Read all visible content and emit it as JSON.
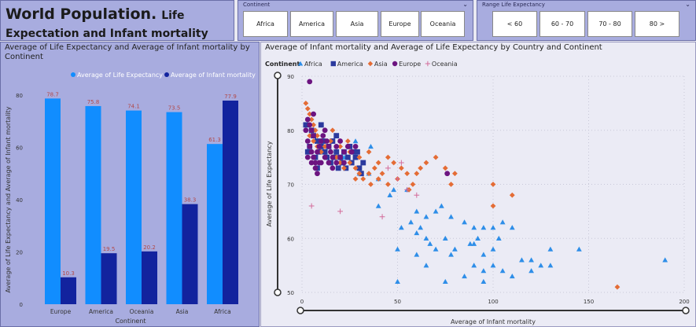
{
  "header": {
    "title_main": "World Population.",
    "title_sub": "Life Expectation and Infant mortality"
  },
  "continent_slicer": {
    "label": "Continent",
    "options": [
      "Africa",
      "America",
      "Asia",
      "Europe",
      "Oceania"
    ]
  },
  "range_slicer": {
    "label": "Range Life Expectancy",
    "options": [
      "< 60",
      "60 - 70",
      "70 - 80",
      "80 >"
    ]
  },
  "colors": {
    "life": "#118dff",
    "infant": "#12239e",
    "africa": "#2e8ee8",
    "america": "#2b3a9e",
    "asia": "#e46c35",
    "europe": "#6c1480",
    "oceania": "#d36b9a"
  },
  "chart_data": [
    {
      "type": "bar",
      "title": "Average of Life Expectancy and Average of Infant mortality by Continent",
      "xlabel": "Continent",
      "ylabel": "Average of Life Expectancy and Average of Infant mortality",
      "legend_position": "top",
      "categories": [
        "Europe",
        "America",
        "Oceania",
        "Asia",
        "Africa"
      ],
      "ylim": [
        0,
        85
      ],
      "yticks": [
        0,
        20,
        40,
        60,
        80
      ],
      "series": [
        {
          "name": "Average of Life Expectancy",
          "values": [
            78.7,
            75.8,
            74.1,
            73.5,
            61.3
          ]
        },
        {
          "name": "Average of Infant mortality",
          "values": [
            10.3,
            19.5,
            20.2,
            38.3,
            77.9
          ]
        }
      ]
    },
    {
      "type": "scatter",
      "title": "Average of Infant mortality and Average of Life Expectancy by Country and Continent",
      "xlabel": "Average of Infant mortality",
      "ylabel": "Average of Life Expectancy",
      "legend_title": "Continent",
      "legend_position": "top-left",
      "xlim": [
        0,
        200
      ],
      "ylim": [
        50,
        90
      ],
      "xticks": [
        0,
        50,
        100,
        150,
        200
      ],
      "yticks": [
        50,
        60,
        70,
        80,
        90
      ],
      "series": [
        {
          "name": "Africa",
          "marker": "triangle",
          "points": [
            [
              30,
              72
            ],
            [
              35,
              72
            ],
            [
              40,
              71
            ],
            [
              48,
              69
            ],
            [
              55,
              69
            ],
            [
              60,
              65
            ],
            [
              65,
              64
            ],
            [
              70,
              65
            ],
            [
              78,
              64
            ],
            [
              85,
              63
            ],
            [
              90,
              62
            ],
            [
              95,
              62
            ],
            [
              100,
              62
            ],
            [
              105,
              63
            ],
            [
              110,
              62
            ],
            [
              52,
              62
            ],
            [
              60,
              61
            ],
            [
              65,
              60
            ],
            [
              75,
              60
            ],
            [
              80,
              58
            ],
            [
              90,
              59
            ],
            [
              95,
              57
            ],
            [
              100,
              58
            ],
            [
              115,
              56
            ],
            [
              120,
              56
            ],
            [
              130,
              58
            ],
            [
              145,
              58
            ],
            [
              190,
              56
            ],
            [
              50,
              58
            ],
            [
              60,
              57
            ],
            [
              70,
              58
            ],
            [
              78,
              57
            ],
            [
              90,
              55
            ],
            [
              95,
              54
            ],
            [
              100,
              55
            ],
            [
              105,
              54
            ],
            [
              120,
              54
            ],
            [
              130,
              55
            ],
            [
              65,
              55
            ],
            [
              85,
              53
            ],
            [
              75,
              52
            ],
            [
              95,
              52
            ],
            [
              110,
              53
            ],
            [
              50,
              52
            ],
            [
              67,
              59
            ],
            [
              92,
              60
            ],
            [
              125,
              55
            ],
            [
              40,
              66
            ],
            [
              62,
              62
            ],
            [
              88,
              59
            ],
            [
              103,
              60
            ],
            [
              57,
              63
            ],
            [
              73,
              66
            ],
            [
              28,
              78
            ],
            [
              36,
              77
            ],
            [
              22,
              75
            ],
            [
              46,
              68
            ]
          ]
        },
        {
          "name": "America",
          "marker": "square",
          "points": [
            [
              5,
              80
            ],
            [
              6,
              79
            ],
            [
              8,
              78
            ],
            [
              10,
              77
            ],
            [
              12,
              76
            ],
            [
              14,
              77
            ],
            [
              16,
              78
            ],
            [
              18,
              76
            ],
            [
              20,
              75
            ],
            [
              22,
              76
            ],
            [
              24,
              75
            ],
            [
              25,
              77
            ],
            [
              26,
              74
            ],
            [
              28,
              75
            ],
            [
              30,
              73
            ],
            [
              32,
              74
            ],
            [
              7,
              75
            ],
            [
              9,
              76
            ],
            [
              15,
              74
            ],
            [
              19,
              73
            ],
            [
              21,
              74
            ],
            [
              29,
              76
            ],
            [
              11,
              78
            ],
            [
              13,
              75
            ],
            [
              3,
              76
            ],
            [
              4,
              77
            ],
            [
              17,
              75
            ],
            [
              23,
              73
            ],
            [
              27,
              76
            ],
            [
              31,
              72
            ],
            [
              2,
              81
            ],
            [
              10,
              81
            ],
            [
              18,
              79
            ],
            [
              8,
              73
            ]
          ]
        },
        {
          "name": "Asia",
          "marker": "diamond",
          "points": [
            [
              2,
              85
            ],
            [
              3,
              84
            ],
            [
              4,
              83
            ],
            [
              5,
              82
            ],
            [
              6,
              81
            ],
            [
              7,
              80
            ],
            [
              8,
              79
            ],
            [
              10,
              78
            ],
            [
              12,
              77
            ],
            [
              15,
              76
            ],
            [
              18,
              75
            ],
            [
              20,
              74
            ],
            [
              22,
              73
            ],
            [
              25,
              74
            ],
            [
              28,
              73
            ],
            [
              30,
              72
            ],
            [
              32,
              71
            ],
            [
              35,
              72
            ],
            [
              38,
              73
            ],
            [
              40,
              71
            ],
            [
              45,
              70
            ],
            [
              50,
              71
            ],
            [
              55,
              72
            ],
            [
              60,
              72
            ],
            [
              62,
              73
            ],
            [
              40,
              74
            ],
            [
              45,
              75
            ],
            [
              30,
              75
            ],
            [
              35,
              76
            ],
            [
              25,
              76
            ],
            [
              20,
              77
            ],
            [
              15,
              78
            ],
            [
              10,
              76
            ],
            [
              8,
              77
            ],
            [
              6,
              78
            ],
            [
              4,
              79
            ],
            [
              28,
              71
            ],
            [
              36,
              70
            ],
            [
              42,
              72
            ],
            [
              48,
              74
            ],
            [
              52,
              73
            ],
            [
              58,
              70
            ],
            [
              65,
              74
            ],
            [
              70,
              75
            ],
            [
              75,
              73
            ],
            [
              78,
              70
            ],
            [
              80,
              72
            ],
            [
              100,
              70
            ],
            [
              110,
              68
            ],
            [
              100,
              66
            ],
            [
              165,
              51
            ],
            [
              16,
              80
            ],
            [
              24,
              78
            ],
            [
              56,
              69
            ]
          ]
        },
        {
          "name": "Europe",
          "marker": "circle",
          "points": [
            [
              3,
              82
            ],
            [
              4,
              81
            ],
            [
              5,
              80
            ],
            [
              6,
              79
            ],
            [
              3,
              78
            ],
            [
              4,
              77
            ],
            [
              5,
              76
            ],
            [
              6,
              75
            ],
            [
              7,
              74
            ],
            [
              8,
              76
            ],
            [
              9,
              77
            ],
            [
              10,
              78
            ],
            [
              11,
              79
            ],
            [
              12,
              80
            ],
            [
              13,
              78
            ],
            [
              14,
              77
            ],
            [
              15,
              76
            ],
            [
              16,
              75
            ],
            [
              18,
              77
            ],
            [
              20,
              78
            ],
            [
              22,
              76
            ],
            [
              24,
              77
            ],
            [
              3,
              75
            ],
            [
              5,
              74
            ],
            [
              7,
              73
            ],
            [
              9,
              74
            ],
            [
              4,
              89
            ],
            [
              2,
              80
            ],
            [
              6,
              83
            ],
            [
              10,
              74
            ],
            [
              12,
              75
            ],
            [
              14,
              74
            ],
            [
              16,
              73
            ],
            [
              18,
              74
            ],
            [
              20,
              75
            ],
            [
              26,
              76
            ],
            [
              28,
              77
            ],
            [
              22,
              74
            ],
            [
              8,
              72
            ],
            [
              76,
              72
            ]
          ]
        },
        {
          "name": "Oceania",
          "marker": "plus",
          "points": [
            [
              5,
              66
            ],
            [
              20,
              65
            ],
            [
              42,
              64
            ],
            [
              45,
              73
            ],
            [
              50,
              71
            ],
            [
              55,
              69
            ],
            [
              60,
              68
            ],
            [
              52,
              74
            ]
          ]
        }
      ]
    }
  ]
}
